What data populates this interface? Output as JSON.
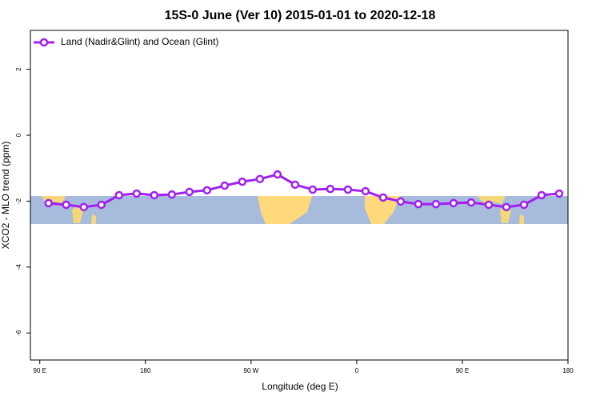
{
  "chart_data": {
    "type": "line",
    "title": "15S-0 June (Ver 10)   2015-01-01 to 2020-12-18",
    "x_label": "Longitude (deg E)",
    "y_label": "XCO2 - MLO trend (ppm)",
    "x": [
      97.5,
      112.5,
      127.5,
      142.5,
      157.5,
      172.5,
      187.5,
      202.5,
      217.5,
      232.5,
      247.5,
      262.5,
      277.5,
      292.5,
      307.5,
      322.5,
      337.5,
      352.5,
      367.5,
      382.5,
      397.5,
      412.5,
      427.5,
      442.5,
      457.5,
      472.5,
      487.5,
      502.5,
      517.5,
      532.5
    ],
    "series": [
      {
        "name": "Land (Nadir&Glint) and Ocean (Glint)",
        "color": "#a020f0",
        "values": [
          -2.06,
          -2.11,
          -2.18,
          -2.11,
          -1.82,
          -1.77,
          -1.82,
          -1.8,
          -1.72,
          -1.67,
          -1.53,
          -1.41,
          -1.33,
          -1.19,
          -1.5,
          -1.65,
          -1.63,
          -1.65,
          -1.7,
          -1.89,
          -2.01,
          -2.09,
          -2.09,
          -2.06,
          -2.04,
          -2.11,
          -2.18,
          -2.11,
          -1.82,
          -1.77
        ]
      }
    ],
    "xlim": [
      82,
      540
    ],
    "xticks": [
      {
        "value": 90,
        "label": "90 E"
      },
      {
        "value": 180,
        "label": "180"
      },
      {
        "value": 270,
        "label": "90 W"
      },
      {
        "value": 360,
        "label": "0"
      },
      {
        "value": 450,
        "label": "90 E"
      },
      {
        "value": 540,
        "label": "180"
      }
    ],
    "ylim": [
      -6.82,
      3.18
    ],
    "yticks": [
      -6,
      -4,
      -2,
      0,
      2
    ],
    "legend": "top-left"
  }
}
